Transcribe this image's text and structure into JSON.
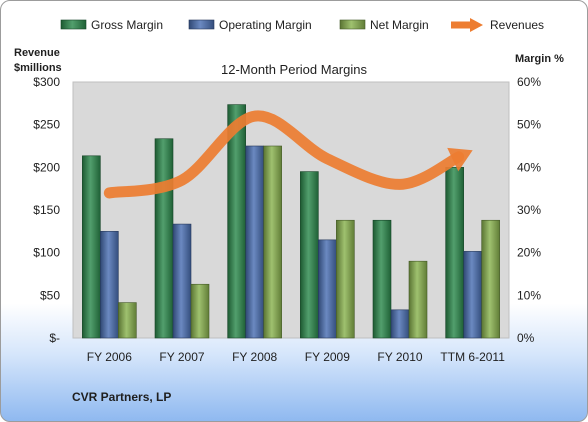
{
  "chart_data": {
    "type": "bar",
    "title": "12-Month Period Margins",
    "categories": [
      "FY 2006",
      "FY 2007",
      "FY 2008",
      "FY 2009",
      "FY 2010",
      "TTM 6-2011"
    ],
    "series": [
      {
        "name": "Gross Margin",
        "axis": "right",
        "values": [
          42.7,
          46.7,
          54.7,
          39.0,
          27.6,
          40.0
        ],
        "color": "#2c8a4d"
      },
      {
        "name": "Operating Margin",
        "axis": "right",
        "values": [
          25.0,
          26.7,
          45.0,
          23.0,
          6.6,
          20.3
        ],
        "color": "#4a6fb3"
      },
      {
        "name": "Net Margin",
        "axis": "right",
        "values": [
          8.3,
          12.6,
          45.0,
          27.6,
          18.0,
          27.6
        ],
        "color": "#8ab34f"
      }
    ],
    "line_series": {
      "name": "Revenues",
      "axis": "left",
      "values": [
        170,
        185,
        260,
        210,
        180,
        220
      ],
      "color": "#ed7d31",
      "arrow_end": true
    },
    "y_left": {
      "label_line1": "Revenue",
      "label_line2": "$millions",
      "ylim": [
        0,
        300
      ],
      "ticks": [
        0,
        50,
        100,
        150,
        200,
        250,
        300
      ],
      "tick_labels": [
        "$-",
        "$50",
        "$100",
        "$150",
        "$200",
        "$250",
        "$300"
      ]
    },
    "y_right": {
      "label": "Margin %",
      "ylim": [
        0,
        60
      ],
      "ticks": [
        0,
        10,
        20,
        30,
        40,
        50,
        60
      ],
      "tick_labels": [
        "0%",
        "10%",
        "20%",
        "30%",
        "40%",
        "50%",
        "60%"
      ]
    },
    "legend_position": "top",
    "grid": false,
    "plot_background": "#d9d9d9"
  },
  "footer": {
    "company": "CVR Partners, LP"
  }
}
